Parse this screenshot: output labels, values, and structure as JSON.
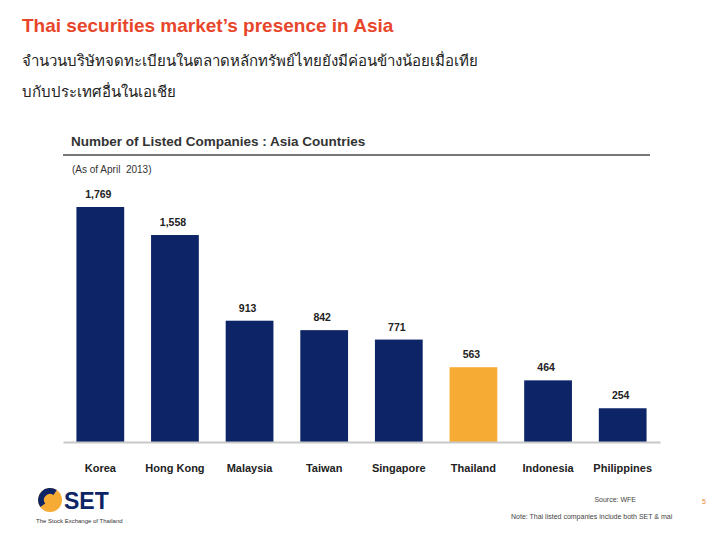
{
  "chart_data": {
    "type": "bar",
    "title": "Thai securities market’s presence in Asia",
    "subtitle": [
      "จำนวนบริษัทจดทะเบียนในตลาดหลักทรัพย์ไทยยังมีค่อนข้างน้อยเมื่อเทีย",
      "บกับประเทศอื่นในเอเชีย"
    ],
    "chart_title": "Number of Listed Companies : Asia Countries",
    "date_note": "(As of April  2013)",
    "categories": [
      "Korea",
      "Hong Kong",
      "Malaysia",
      "Taiwan",
      "Singapore",
      "Thailand",
      "Indonesia",
      "Philippines"
    ],
    "values": [
      1769,
      1558,
      913,
      842,
      771,
      563,
      464,
      254
    ],
    "value_labels": [
      "1,769",
      "1,558",
      "913",
      "842",
      "771",
      "563",
      "464",
      "254"
    ],
    "colors": [
      "#0d2466",
      "#0d2466",
      "#0d2466",
      "#0d2466",
      "#0d2466",
      "#f6ab35",
      "#0d2466",
      "#0d2466"
    ],
    "ylim": [
      0,
      1769
    ],
    "data_labels": true,
    "tick_labels": "x",
    "source": "Source: WFE",
    "note": "Note: Thai listed companies include both SET & mai",
    "logo_text": "SET",
    "logo_caption": "The Stock Exchange of Thailand",
    "page_number": 5
  }
}
